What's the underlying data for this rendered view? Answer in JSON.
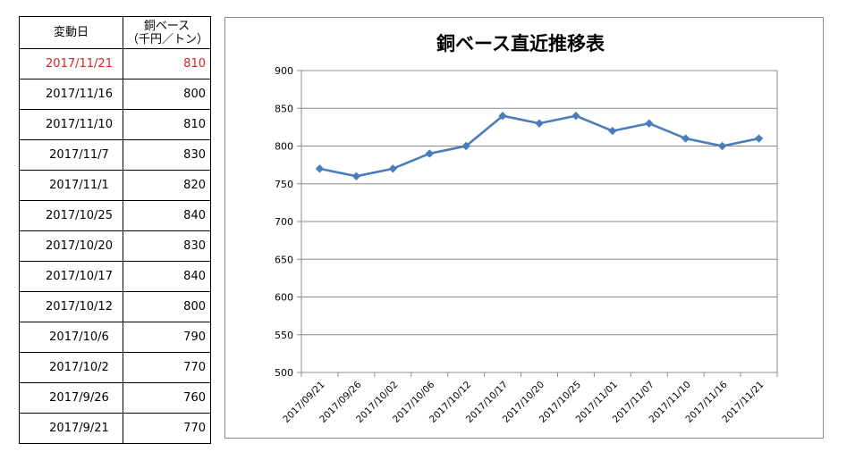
{
  "table": {
    "headers": {
      "date": "変動日",
      "price_line1": "銅ベース",
      "price_line2": "（千円／トン）"
    },
    "rows": [
      {
        "date": "2017/11/21",
        "price": "810",
        "highlight": true
      },
      {
        "date": "2017/11/16",
        "price": "800"
      },
      {
        "date": "2017/11/10",
        "price": "810"
      },
      {
        "date": "2017/11/7",
        "price": "830"
      },
      {
        "date": "2017/11/1",
        "price": "820"
      },
      {
        "date": "2017/10/25",
        "price": "840"
      },
      {
        "date": "2017/10/20",
        "price": "830"
      },
      {
        "date": "2017/10/17",
        "price": "840"
      },
      {
        "date": "2017/10/12",
        "price": "800"
      },
      {
        "date": "2017/10/6",
        "price": "790"
      },
      {
        "date": "2017/10/2",
        "price": "770"
      },
      {
        "date": "2017/9/26",
        "price": "760"
      },
      {
        "date": "2017/9/21",
        "price": "770"
      }
    ],
    "highlight_color": "#e02020"
  },
  "chart_data": {
    "type": "line",
    "title": "銅ベース直近推移表",
    "categories": [
      "2017/09/21",
      "2017/09/26",
      "2017/10/02",
      "2017/10/06",
      "2017/10/12",
      "2017/10/17",
      "2017/10/20",
      "2017/10/25",
      "2017/11/01",
      "2017/11/07",
      "2017/11/10",
      "2017/11/16",
      "2017/11/21"
    ],
    "series": [
      {
        "values": [
          770,
          760,
          770,
          790,
          800,
          840,
          830,
          840,
          820,
          830,
          810,
          800,
          810
        ],
        "color": "#4a7ebb",
        "marker": "diamond"
      }
    ],
    "ylim": [
      500,
      900
    ],
    "yticks": [
      500,
      550,
      600,
      650,
      700,
      750,
      800,
      850,
      900
    ],
    "grid": true,
    "legend": "none"
  }
}
